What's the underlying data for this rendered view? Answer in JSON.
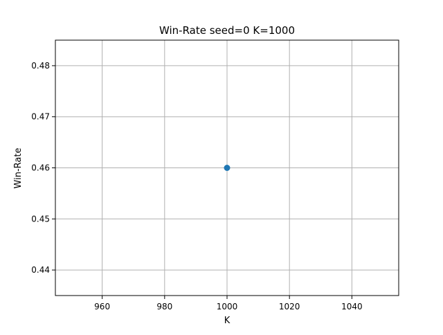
{
  "chart_data": {
    "type": "scatter",
    "title": "Win-Rate seed=0 K=1000",
    "xlabel": "K",
    "ylabel": "Win-Rate",
    "x": [
      1000
    ],
    "y": [
      0.46
    ],
    "xlim": [
      945,
      1055
    ],
    "ylim": [
      0.435,
      0.485
    ],
    "xticks": [
      960,
      980,
      1000,
      1020,
      1040
    ],
    "yticks": [
      0.44,
      0.45,
      0.46,
      0.47,
      0.48
    ],
    "xtick_labels": [
      "960",
      "980",
      "1000",
      "1020",
      "1040"
    ],
    "ytick_labels": [
      "0.44",
      "0.45",
      "0.46",
      "0.47",
      "0.48"
    ],
    "grid": true,
    "marker": "circle",
    "colors": {
      "series": "#1f77b4",
      "grid": "#b0b0b0",
      "axes": "#000000"
    }
  }
}
